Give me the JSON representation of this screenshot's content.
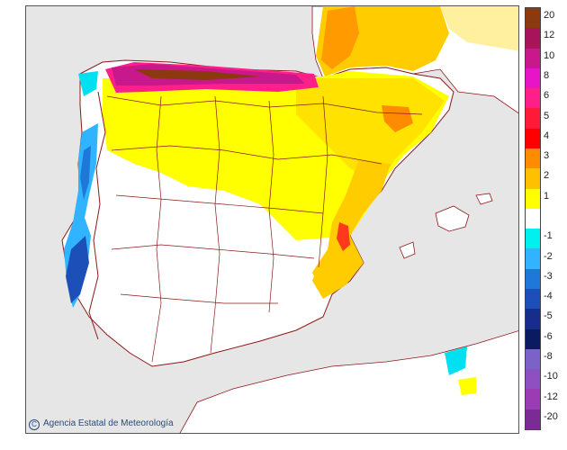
{
  "map": {
    "credit": "Agencia Estatal de Meteorología",
    "credit_symbol": "C"
  },
  "legend": {
    "items": [
      {
        "label": "20",
        "color": "#8b3a0f"
      },
      {
        "label": "12",
        "color": "#a8145a"
      },
      {
        "label": "10",
        "color": "#c8188c"
      },
      {
        "label": "8",
        "color": "#e815c8"
      },
      {
        "label": "6",
        "color": "#ff1f8a"
      },
      {
        "label": "5",
        "color": "#ff1a3a"
      },
      {
        "label": "4",
        "color": "#ff0000"
      },
      {
        "label": "3",
        "color": "#ff8c00"
      },
      {
        "label": "2",
        "color": "#ffc000"
      },
      {
        "label": "1",
        "color": "#ffff00"
      },
      {
        "label": "",
        "color": "#ffffff"
      },
      {
        "label": "-1",
        "color": "#00f0f0"
      },
      {
        "label": "-2",
        "color": "#30b4ff"
      },
      {
        "label": "-3",
        "color": "#1f78d8"
      },
      {
        "label": "-4",
        "color": "#1c4fb8"
      },
      {
        "label": "-5",
        "color": "#162d8c"
      },
      {
        "label": "-6",
        "color": "#0c1a60"
      },
      {
        "label": "-8",
        "color": "#7a62c8"
      },
      {
        "label": "-10",
        "color": "#8c50c0"
      },
      {
        "label": "-12",
        "color": "#9a3cb4"
      },
      {
        "label": "-20",
        "color": "#7c2a96"
      }
    ]
  }
}
